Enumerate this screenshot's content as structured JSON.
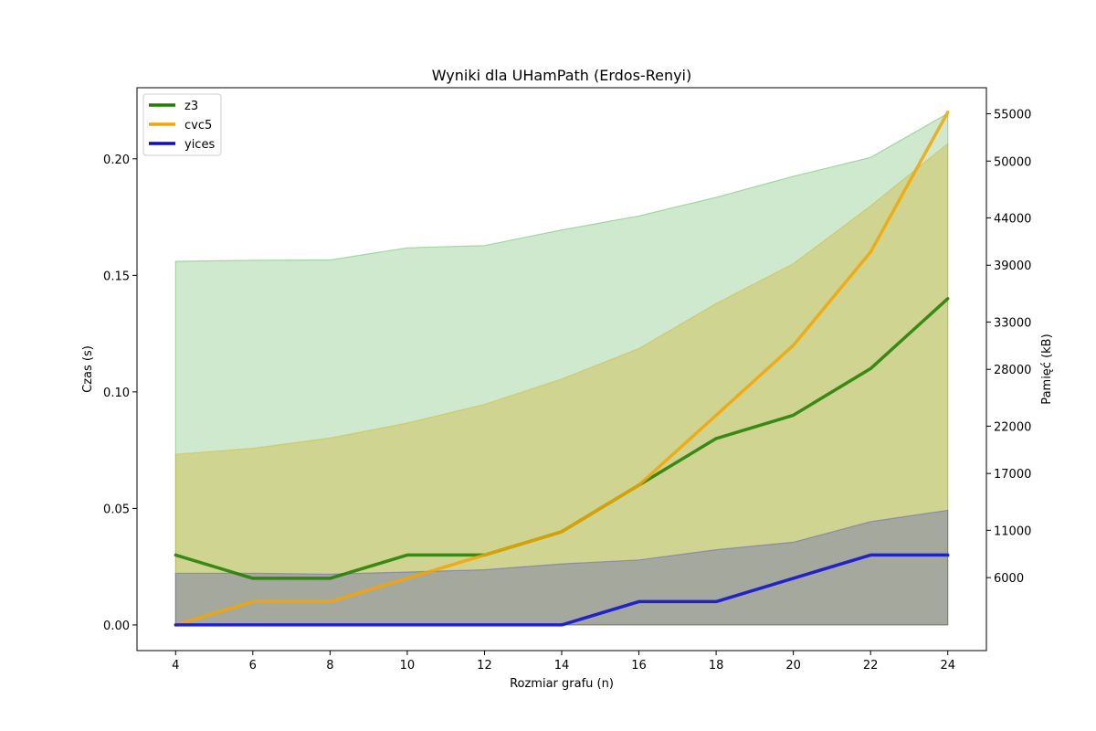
{
  "chart_data": {
    "type": "line",
    "title": "Wyniki dla UHamPath (Erdos-Renyi)",
    "xlabel": "Rozmiar grafu (n)",
    "ylabel": "Czas (s)",
    "y2label": "Pamięć (kB)",
    "x": [
      4,
      6,
      8,
      10,
      12,
      14,
      16,
      18,
      20,
      22,
      24
    ],
    "xlim": [
      3,
      25
    ],
    "ylim": [
      -0.011,
      0.2305
    ],
    "y_ticks": [
      0.0,
      0.05,
      0.1,
      0.15,
      0.2
    ],
    "y_tick_labels": [
      "0.00",
      "0.05",
      "0.10",
      "0.15",
      "0.20"
    ],
    "y2_ticks": [
      6000,
      11000,
      17000,
      22000,
      28000,
      33000,
      39000,
      44000,
      50000,
      55000
    ],
    "y2_tick_labels": [
      "6000",
      "11000",
      "17000",
      "22000",
      "28000",
      "33000",
      "39000",
      "44000",
      "50000",
      "55000"
    ],
    "y2_mapping": {
      "kb_at_y_zero": 1000,
      "kb_per_unit_y": 246200
    },
    "grid": false,
    "legend_position": "upper-left",
    "series": [
      {
        "name": "z3",
        "color": "#1f7d00",
        "values": [
          0.03,
          0.02,
          0.02,
          0.03,
          0.03,
          0.04,
          0.06,
          0.08,
          0.09,
          0.11,
          0.14
        ]
      },
      {
        "name": "cvc5",
        "color": "#f5a500",
        "values": [
          0.0,
          0.01,
          0.01,
          0.02,
          0.03,
          0.04,
          0.06,
          0.09,
          0.12,
          0.16,
          0.22
        ]
      },
      {
        "name": "yices",
        "color": "#0a0ad2",
        "values": [
          0.0,
          0.0,
          0.0,
          0.0,
          0.0,
          0.0,
          0.01,
          0.01,
          0.02,
          0.03,
          0.03
        ]
      }
    ],
    "memory_bands": [
      {
        "series": "z3",
        "fill": "#2ca02c",
        "opacity": 0.23,
        "lower": [
          0,
          0,
          0,
          0,
          0,
          0,
          0,
          0,
          0,
          0,
          0
        ],
        "upper": [
          0.156,
          0.1565,
          0.1566,
          0.1618,
          0.1628,
          0.1695,
          0.1755,
          0.1835,
          0.1925,
          0.2006,
          0.2195
        ]
      },
      {
        "series": "cvc5",
        "fill": "#d1a800",
        "opacity": 0.3,
        "lower": [
          0,
          0,
          0,
          0,
          0,
          0,
          0,
          0,
          0,
          0,
          0
        ],
        "upper": [
          0.0732,
          0.0758,
          0.0802,
          0.0866,
          0.0946,
          0.1055,
          0.1186,
          0.1379,
          0.155,
          0.1798,
          0.2065
        ]
      },
      {
        "series": "yices",
        "fill": "#3a3ac0",
        "opacity": 0.28,
        "lower": [
          0,
          0,
          0,
          0,
          0,
          0,
          0,
          0,
          0,
          0,
          0
        ],
        "upper": [
          0.0222,
          0.0222,
          0.0218,
          0.0227,
          0.0237,
          0.0262,
          0.0279,
          0.0323,
          0.0355,
          0.0443,
          0.0492
        ]
      }
    ]
  }
}
